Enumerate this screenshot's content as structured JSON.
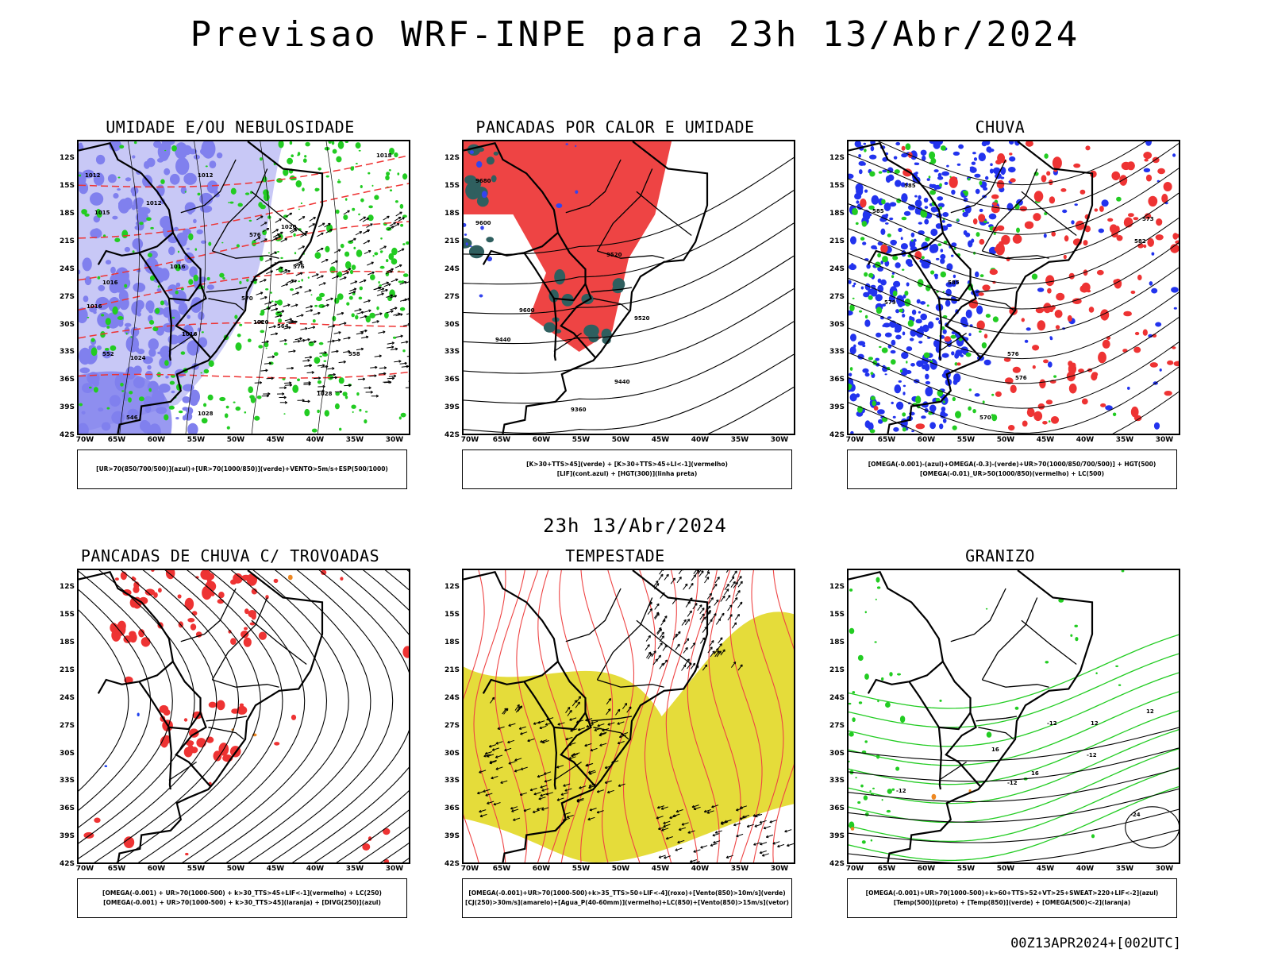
{
  "main_title": "Previsao WRF-INPE  para 23h 13/Abr/2024",
  "mid_title": "23h 13/Abr/2024",
  "footer": "00Z13APR2024+[002UTC]",
  "chart_data": [
    {
      "type": "map",
      "title": "UMIDADE E/OU NEBULOSIDADE",
      "lat_ticks": [
        "12S",
        "15S",
        "18S",
        "21S",
        "24S",
        "27S",
        "30S",
        "33S",
        "36S",
        "39S",
        "42S"
      ],
      "lon_ticks": [
        "70W",
        "65W",
        "60W",
        "55W",
        "50W",
        "45W",
        "40W",
        "35W",
        "30W"
      ],
      "lat_range": [
        -42,
        -10
      ],
      "lon_range": [
        -70,
        -28
      ],
      "legend": [
        "[UR>70(850/700/500)](azul)+[UR>70(1000/850)](verde)+VENTO>5m/s+ESP(500/1000)"
      ],
      "contour_labels": [
        "1012",
        "1012",
        "1012",
        "1015",
        "1016",
        "1016",
        "1016",
        "1016",
        "1018",
        "1020",
        "1020",
        "1024",
        "1028",
        "1028",
        "576",
        "576",
        "570",
        "564",
        "558",
        "552",
        "546"
      ],
      "colors": {
        "blue": "#8080ee",
        "lightblue": "#c8c8f6",
        "green": "#22cc22",
        "red": "#ee3333"
      }
    },
    {
      "type": "map",
      "title": "PANCADAS POR CALOR E UMIDADE",
      "lat_ticks": [
        "12S",
        "15S",
        "18S",
        "21S",
        "24S",
        "27S",
        "30S",
        "33S",
        "36S",
        "39S",
        "42S"
      ],
      "lon_ticks": [
        "70W",
        "65W",
        "60W",
        "55W",
        "50W",
        "45W",
        "40W",
        "35W",
        "30W"
      ],
      "lat_range": [
        -42,
        -10
      ],
      "lon_range": [
        -70,
        -28
      ],
      "legend": [
        "[K>30+TTS>45](verde)  +  [K>30+TTS>45+LI<-1](vermelho)",
        "[LIF](cont.azul)  +  [HGT(300)](linha preta)"
      ],
      "contour_labels": [
        "9680",
        "9600",
        "9600",
        "9520",
        "9520",
        "9440",
        "9440",
        "9360"
      ],
      "colors": {
        "red": "#ee4444",
        "darkgreen": "#2f5f5f",
        "blue": "#3344ee"
      }
    },
    {
      "type": "map",
      "title": "CHUVA",
      "lat_ticks": [
        "12S",
        "15S",
        "18S",
        "21S",
        "24S",
        "27S",
        "30S",
        "33S",
        "36S",
        "39S",
        "42S"
      ],
      "lon_ticks": [
        "70W",
        "65W",
        "60W",
        "55W",
        "50W",
        "45W",
        "40W",
        "35W",
        "30W"
      ],
      "lat_range": [
        -42,
        -10
      ],
      "lon_range": [
        -70,
        -28
      ],
      "legend": [
        "[OMEGA(-0.001)-(azul)+OMEGA(-0.3)-(verde)+UR>70(1000/850/700/500)]  +  HGT(500)",
        "[OMEGA(-0.01)_UR>50(1000/850)(vermelho)  +  LC(500)"
      ],
      "contour_labels": [
        "585",
        "585",
        "585",
        "582",
        "579",
        "576",
        "576",
        "573",
        "570"
      ],
      "colors": {
        "blue": "#2233ee",
        "green": "#22cc22",
        "red": "#ee3333"
      }
    },
    {
      "type": "map",
      "title": "PANCADAS DE CHUVA C/ TROVOADAS",
      "lat_ticks": [
        "12S",
        "15S",
        "18S",
        "21S",
        "24S",
        "27S",
        "30S",
        "33S",
        "36S",
        "39S",
        "42S"
      ],
      "lon_ticks": [
        "70W",
        "65W",
        "60W",
        "55W",
        "50W",
        "45W",
        "40W",
        "35W",
        "30W"
      ],
      "lat_range": [
        -42,
        -10
      ],
      "lon_range": [
        -70,
        -28
      ],
      "legend": [
        "[OMEGA(-0.001)  +  UR>70(1000-500)  +  k>30_TTS>45+LIF<-1](vermelho)  +  LC(250)",
        "[OMEGA(-0.001)  +  UR>70(1000-500)  +  k>30_TTS>45](laranja)  +  [DIVG(250)](azul)"
      ],
      "colors": {
        "red": "#ee3333",
        "orange": "#ee8822",
        "blue": "#2244ee"
      }
    },
    {
      "type": "map",
      "title": "TEMPESTADE",
      "lat_ticks": [
        "12S",
        "15S",
        "18S",
        "21S",
        "24S",
        "27S",
        "30S",
        "33S",
        "36S",
        "39S",
        "42S"
      ],
      "lon_ticks": [
        "70W",
        "65W",
        "60W",
        "55W",
        "50W",
        "45W",
        "40W",
        "35W",
        "30W"
      ],
      "lat_range": [
        -42,
        -10
      ],
      "lon_range": [
        -70,
        -28
      ],
      "legend": [
        "[OMEGA(-0.001)+UR>70(1000-500)+k>35_TTS>50+LIF<-4](roxo)+[Vento(850)>10m/s](verde)",
        "[CJ(250)>30m/s](amarelo)+[Agua_P(40-60mm)](vermelho)+LC(850)+[Vento(850)>15m/s](vetor)"
      ],
      "colors": {
        "yellow": "#e5dc3a",
        "red": "#ee4444"
      }
    },
    {
      "type": "map",
      "title": "GRANIZO",
      "lat_ticks": [
        "12S",
        "15S",
        "18S",
        "21S",
        "24S",
        "27S",
        "30S",
        "33S",
        "36S",
        "39S",
        "42S"
      ],
      "lon_ticks": [
        "70W",
        "65W",
        "60W",
        "55W",
        "50W",
        "45W",
        "40W",
        "35W",
        "30W"
      ],
      "lat_range": [
        -42,
        -10
      ],
      "lon_range": [
        -70,
        -28
      ],
      "legend": [
        "[OMEGA(-0.001)+UR>70(1000-500)+k>60+TTS>52+VT>25+SWEAT>220+LIF<-2](azul)",
        "[Temp(500)](preto)  +  [Temp(850)](verde)  +  [OMEGA(500)<-2](laranja)"
      ],
      "contour_labels": [
        "-12",
        "-12",
        "-12",
        "-12",
        "-24",
        "12",
        "12",
        "16",
        "16"
      ],
      "colors": {
        "green": "#22cc22",
        "orange": "#ee8822"
      }
    }
  ]
}
